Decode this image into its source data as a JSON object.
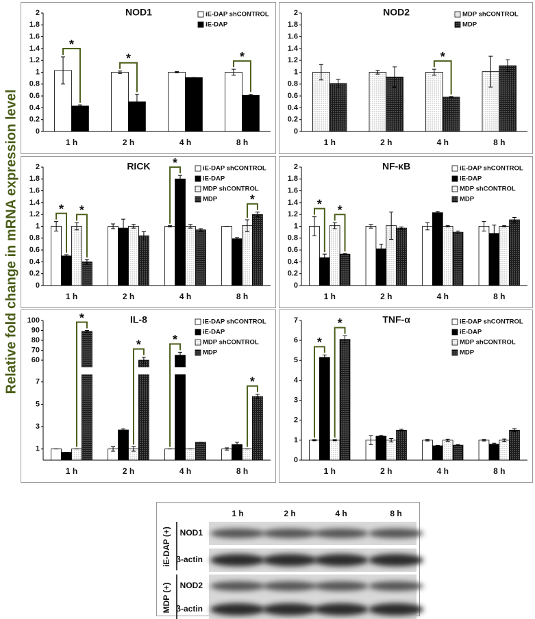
{
  "ylabel": "Relative fold change in mRNA expression level",
  "chart_data": [
    {
      "type": "bar",
      "title": "NOD1",
      "categories": [
        "1 h",
        "2 h",
        "4 h",
        "8 h"
      ],
      "series": [
        {
          "name": "iE-DAP shCONTROL",
          "color": "#ffffff",
          "values": [
            1.03,
            1,
            1,
            1
          ],
          "errors": [
            0.23,
            0.02,
            0.01,
            0.05
          ]
        },
        {
          "name": "iE-DAP",
          "color": "#000000",
          "values": [
            0.43,
            0.5,
            0.91,
            0.61
          ],
          "errors": [
            0.02,
            0.13,
            0,
            0.02
          ]
        }
      ],
      "ylim": [
        0,
        2
      ],
      "yticks": [
        0,
        0.2,
        0.4,
        0.6,
        0.8,
        1,
        1.2,
        1.4,
        1.6,
        1.8,
        2
      ],
      "legend": "top-right",
      "annotation_color": "#4b5e19",
      "annotations": [
        {
          "text": "*",
          "category": 0,
          "series": [
            0,
            1
          ]
        },
        {
          "text": "*",
          "category": 1,
          "series": [
            0,
            1
          ]
        },
        {
          "text": "*",
          "category": 3,
          "series": [
            0,
            1
          ]
        }
      ]
    },
    {
      "type": "bar",
      "title": "NOD2",
      "categories": [
        "1 h",
        "2 h",
        "4 h",
        "8 h"
      ],
      "series": [
        {
          "name": "MDP shCONTROL",
          "color": "#ffffff",
          "pattern": "dots",
          "values": [
            1,
            1,
            1,
            1.01
          ],
          "errors": [
            0.13,
            0.03,
            0.05,
            0.26
          ]
        },
        {
          "name": "MDP",
          "color": "#1a1a1a",
          "pattern": "dots",
          "values": [
            0.81,
            0.92,
            0.58,
            1.11
          ],
          "errors": [
            0.07,
            0.17,
            0.01,
            0.1
          ]
        }
      ],
      "ylim": [
        0,
        2
      ],
      "yticks": [
        0,
        0.2,
        0.4,
        0.6,
        0.8,
        1,
        1.2,
        1.4,
        1.6,
        1.8,
        2
      ],
      "legend": "top-right",
      "annotation_color": "#4b5e19",
      "annotations": [
        {
          "text": "*",
          "category": 2,
          "series": [
            0,
            1
          ]
        }
      ]
    },
    {
      "type": "bar",
      "title": "RICK",
      "categories": [
        "1 h",
        "2 h",
        "4 h",
        "8 h"
      ],
      "series": [
        {
          "name": "iE-DAP shCONTROL",
          "color": "#ffffff",
          "values": [
            1,
            1,
            1,
            1
          ],
          "errors": [
            0.08,
            0.04,
            0.01,
            0
          ]
        },
        {
          "name": "iE-DAP",
          "color": "#000000",
          "values": [
            0.5,
            0.97,
            1.8,
            0.79
          ],
          "errors": [
            0.02,
            0.15,
            0.06,
            0.02
          ]
        },
        {
          "name": "MDP shCONTROL",
          "color": "#ffffff",
          "pattern": "dots",
          "values": [
            1,
            1,
            1,
            1.01
          ],
          "errors": [
            0.06,
            0.03,
            0.03,
            0.1
          ]
        },
        {
          "name": "MDP",
          "color": "#1a1a1a",
          "pattern": "dots",
          "values": [
            0.4,
            0.84,
            0.94,
            1.2
          ],
          "errors": [
            0.04,
            0.07,
            0.02,
            0.04
          ]
        }
      ],
      "ylim": [
        0,
        2
      ],
      "yticks": [
        0,
        0.2,
        0.4,
        0.6,
        0.8,
        1,
        1.2,
        1.4,
        1.6,
        1.8,
        2
      ],
      "legend": "top-right",
      "annotation_color": "#4b5e19",
      "annotations": [
        {
          "text": "*",
          "category": 0,
          "series": [
            0,
            1
          ]
        },
        {
          "text": "*",
          "category": 0,
          "series": [
            2,
            3
          ]
        },
        {
          "text": "*",
          "category": 2,
          "series": [
            0,
            1
          ]
        },
        {
          "text": "*",
          "category": 3,
          "series": [
            2,
            3
          ]
        }
      ]
    },
    {
      "type": "bar",
      "title": "NF-κB",
      "categories": [
        "1 h",
        "2 h",
        "4 h",
        "8 h"
      ],
      "series": [
        {
          "name": "iE-DAP shCONTROL",
          "color": "#ffffff",
          "values": [
            1,
            1,
            1,
            1
          ],
          "errors": [
            0.16,
            0.03,
            0.06,
            0.08
          ]
        },
        {
          "name": "iE-DAP",
          "color": "#000000",
          "values": [
            0.47,
            0.62,
            1.23,
            0.88
          ],
          "errors": [
            0.06,
            0.08,
            0.02,
            0.14
          ]
        },
        {
          "name": "MDP shCONTROL",
          "color": "#ffffff",
          "pattern": "dots",
          "values": [
            1.01,
            1.01,
            1,
            1
          ],
          "errors": [
            0.05,
            0.23,
            0.01,
            0.01
          ]
        },
        {
          "name": "MDP",
          "color": "#1a1a1a",
          "pattern": "dots",
          "values": [
            0.53,
            0.97,
            0.9,
            1.11
          ],
          "errors": [
            0.01,
            0.02,
            0.02,
            0.04
          ]
        }
      ],
      "ylim": [
        0,
        2
      ],
      "yticks": [
        0,
        0.2,
        0.4,
        0.6,
        0.8,
        1,
        1.2,
        1.4,
        1.6,
        1.8,
        2
      ],
      "legend": "top-right",
      "annotation_color": "#4b5e19",
      "annotations": [
        {
          "text": "*",
          "category": 0,
          "series": [
            0,
            1
          ]
        },
        {
          "text": "*",
          "category": 0,
          "series": [
            2,
            3
          ]
        }
      ]
    },
    {
      "type": "bar",
      "title": "IL-8",
      "categories": [
        "1 h",
        "2 h",
        "4 h",
        "8 h"
      ],
      "series": [
        {
          "name": "iE-DAP shCONTROL",
          "color": "#ffffff",
          "values": [
            1,
            1,
            1,
            1
          ],
          "errors": [
            0,
            0.2,
            0,
            0.1
          ]
        },
        {
          "name": "iE-DAP",
          "color": "#000000",
          "values": [
            0.7,
            2.7,
            65,
            1.4
          ],
          "errors": [
            0,
            0.1,
            3,
            0.2
          ]
        },
        {
          "name": "MDP shCONTROL",
          "color": "#ffffff",
          "pattern": "dots",
          "values": [
            1,
            1,
            1,
            1
          ],
          "errors": [
            0,
            0.2,
            0,
            0
          ]
        },
        {
          "name": "MDP",
          "color": "#1a1a1a",
          "pattern": "dots",
          "values": [
            89,
            60,
            1.6,
            5.7
          ],
          "errors": [
            1,
            3,
            0,
            0.2
          ]
        }
      ],
      "ylim": [
        0,
        100
      ],
      "ybreak": [
        7.5,
        55
      ],
      "yticks": [
        1,
        3,
        5,
        7,
        60,
        70,
        80,
        90,
        100
      ],
      "legend": "top-right",
      "annotation_color": "#4b5e19",
      "annotations": [
        {
          "text": "*",
          "category": 0,
          "series": [
            2,
            3
          ]
        },
        {
          "text": "*",
          "category": 1,
          "series": [
            2,
            3
          ]
        },
        {
          "text": "*",
          "category": 2,
          "series": [
            0,
            1
          ]
        },
        {
          "text": "*",
          "category": 3,
          "series": [
            2,
            3
          ]
        }
      ]
    },
    {
      "type": "bar",
      "title": "TNF-α",
      "categories": [
        "1 h",
        "2 h",
        "4 h",
        "8 h"
      ],
      "series": [
        {
          "name": "iE-DAP shCONTROL",
          "color": "#ffffff",
          "values": [
            1,
            1,
            1,
            1
          ],
          "errors": [
            0.03,
            0.22,
            0.04,
            0.04
          ]
        },
        {
          "name": "iE-DAP",
          "color": "#000000",
          "values": [
            5.15,
            1.2,
            0.72,
            0.8
          ],
          "errors": [
            0.12,
            0.05,
            0.02,
            0.05
          ]
        },
        {
          "name": "MDP shCONTROL",
          "color": "#ffffff",
          "pattern": "dots",
          "values": [
            1,
            1,
            1,
            1
          ],
          "errors": [
            0.03,
            0.08,
            0.05,
            0.06
          ]
        },
        {
          "name": "MDP",
          "color": "#1a1a1a",
          "pattern": "dots",
          "values": [
            6.05,
            1.5,
            0.75,
            1.5
          ],
          "errors": [
            0.18,
            0.05,
            0.03,
            0.08
          ]
        }
      ],
      "ylim": [
        0,
        7
      ],
      "yticks": [
        0,
        1,
        2,
        3,
        4,
        5,
        6,
        7
      ],
      "legend": "top-right",
      "annotation_color": "#4b5e19",
      "annotations": [
        {
          "text": "*",
          "category": 0,
          "series": [
            0,
            1
          ]
        },
        {
          "text": "*",
          "category": 0,
          "series": [
            2,
            3
          ]
        }
      ]
    }
  ],
  "blot": {
    "times": [
      "1 h",
      "2 h",
      "4 h",
      "8 h"
    ],
    "groups": [
      {
        "name": "iE-DAP (+)",
        "rows": [
          "NOD1",
          "β-actin"
        ]
      },
      {
        "name": "MDP (+)",
        "rows": [
          "NOD2",
          "β-actin"
        ]
      }
    ]
  }
}
